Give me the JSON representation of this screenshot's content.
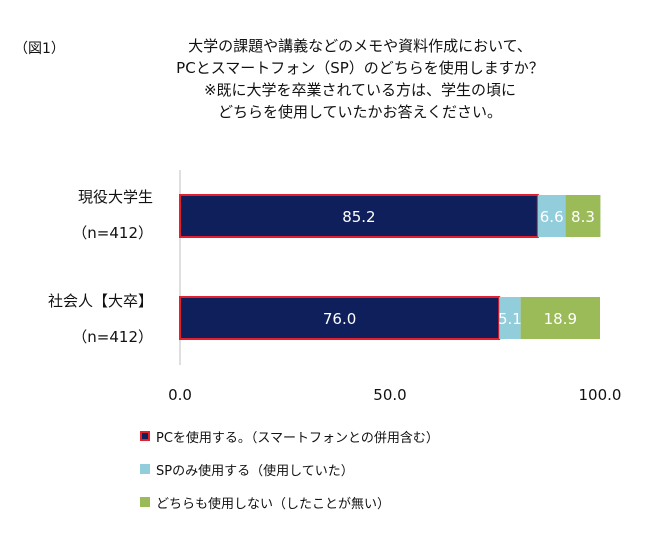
{
  "figure_label": "（図1）",
  "title_lines": [
    "大学の課題や講義などのメモや資料作成において、",
    "PCとスマートフォン（SP）のどちらを使用しますか？",
    "※既に大学を卒業されている方は、学生の頃に",
    "どちらを使用していたかお答えください。"
  ],
  "colors": {
    "pc_fill": "#0f1f5c",
    "pc_border": "#e3202e",
    "sp": "#92cddc",
    "neither": "#9bbb59"
  },
  "chart_data": {
    "type": "bar",
    "orientation": "horizontal",
    "stacked": true,
    "categories": [
      {
        "name": "現役大学生",
        "sample": "（n=412）"
      },
      {
        "name": "社会人【大卒】",
        "sample": "（n=412）"
      }
    ],
    "series": [
      {
        "name": "PCを使用する。（スマートフォンとの併用含む）",
        "values": [
          85.2,
          76.0
        ],
        "labels": [
          "85.2",
          "76.0"
        ],
        "color": "#0f1f5c",
        "border": "#e3202e"
      },
      {
        "name": "SPのみ使用する（使用していた）",
        "values": [
          6.6,
          5.1
        ],
        "labels": [
          "6.6",
          "5.1"
        ],
        "color": "#92cddc"
      },
      {
        "name": "どちらも使用しない（したことが無い）",
        "values": [
          8.3,
          18.9
        ],
        "labels": [
          "8.3",
          "18.9"
        ],
        "color": "#9bbb59"
      }
    ],
    "xlim": [
      0,
      100
    ],
    "xticks": [
      "0.0",
      "50.0",
      "100.0"
    ],
    "grid": false,
    "legend_position": "bottom"
  }
}
